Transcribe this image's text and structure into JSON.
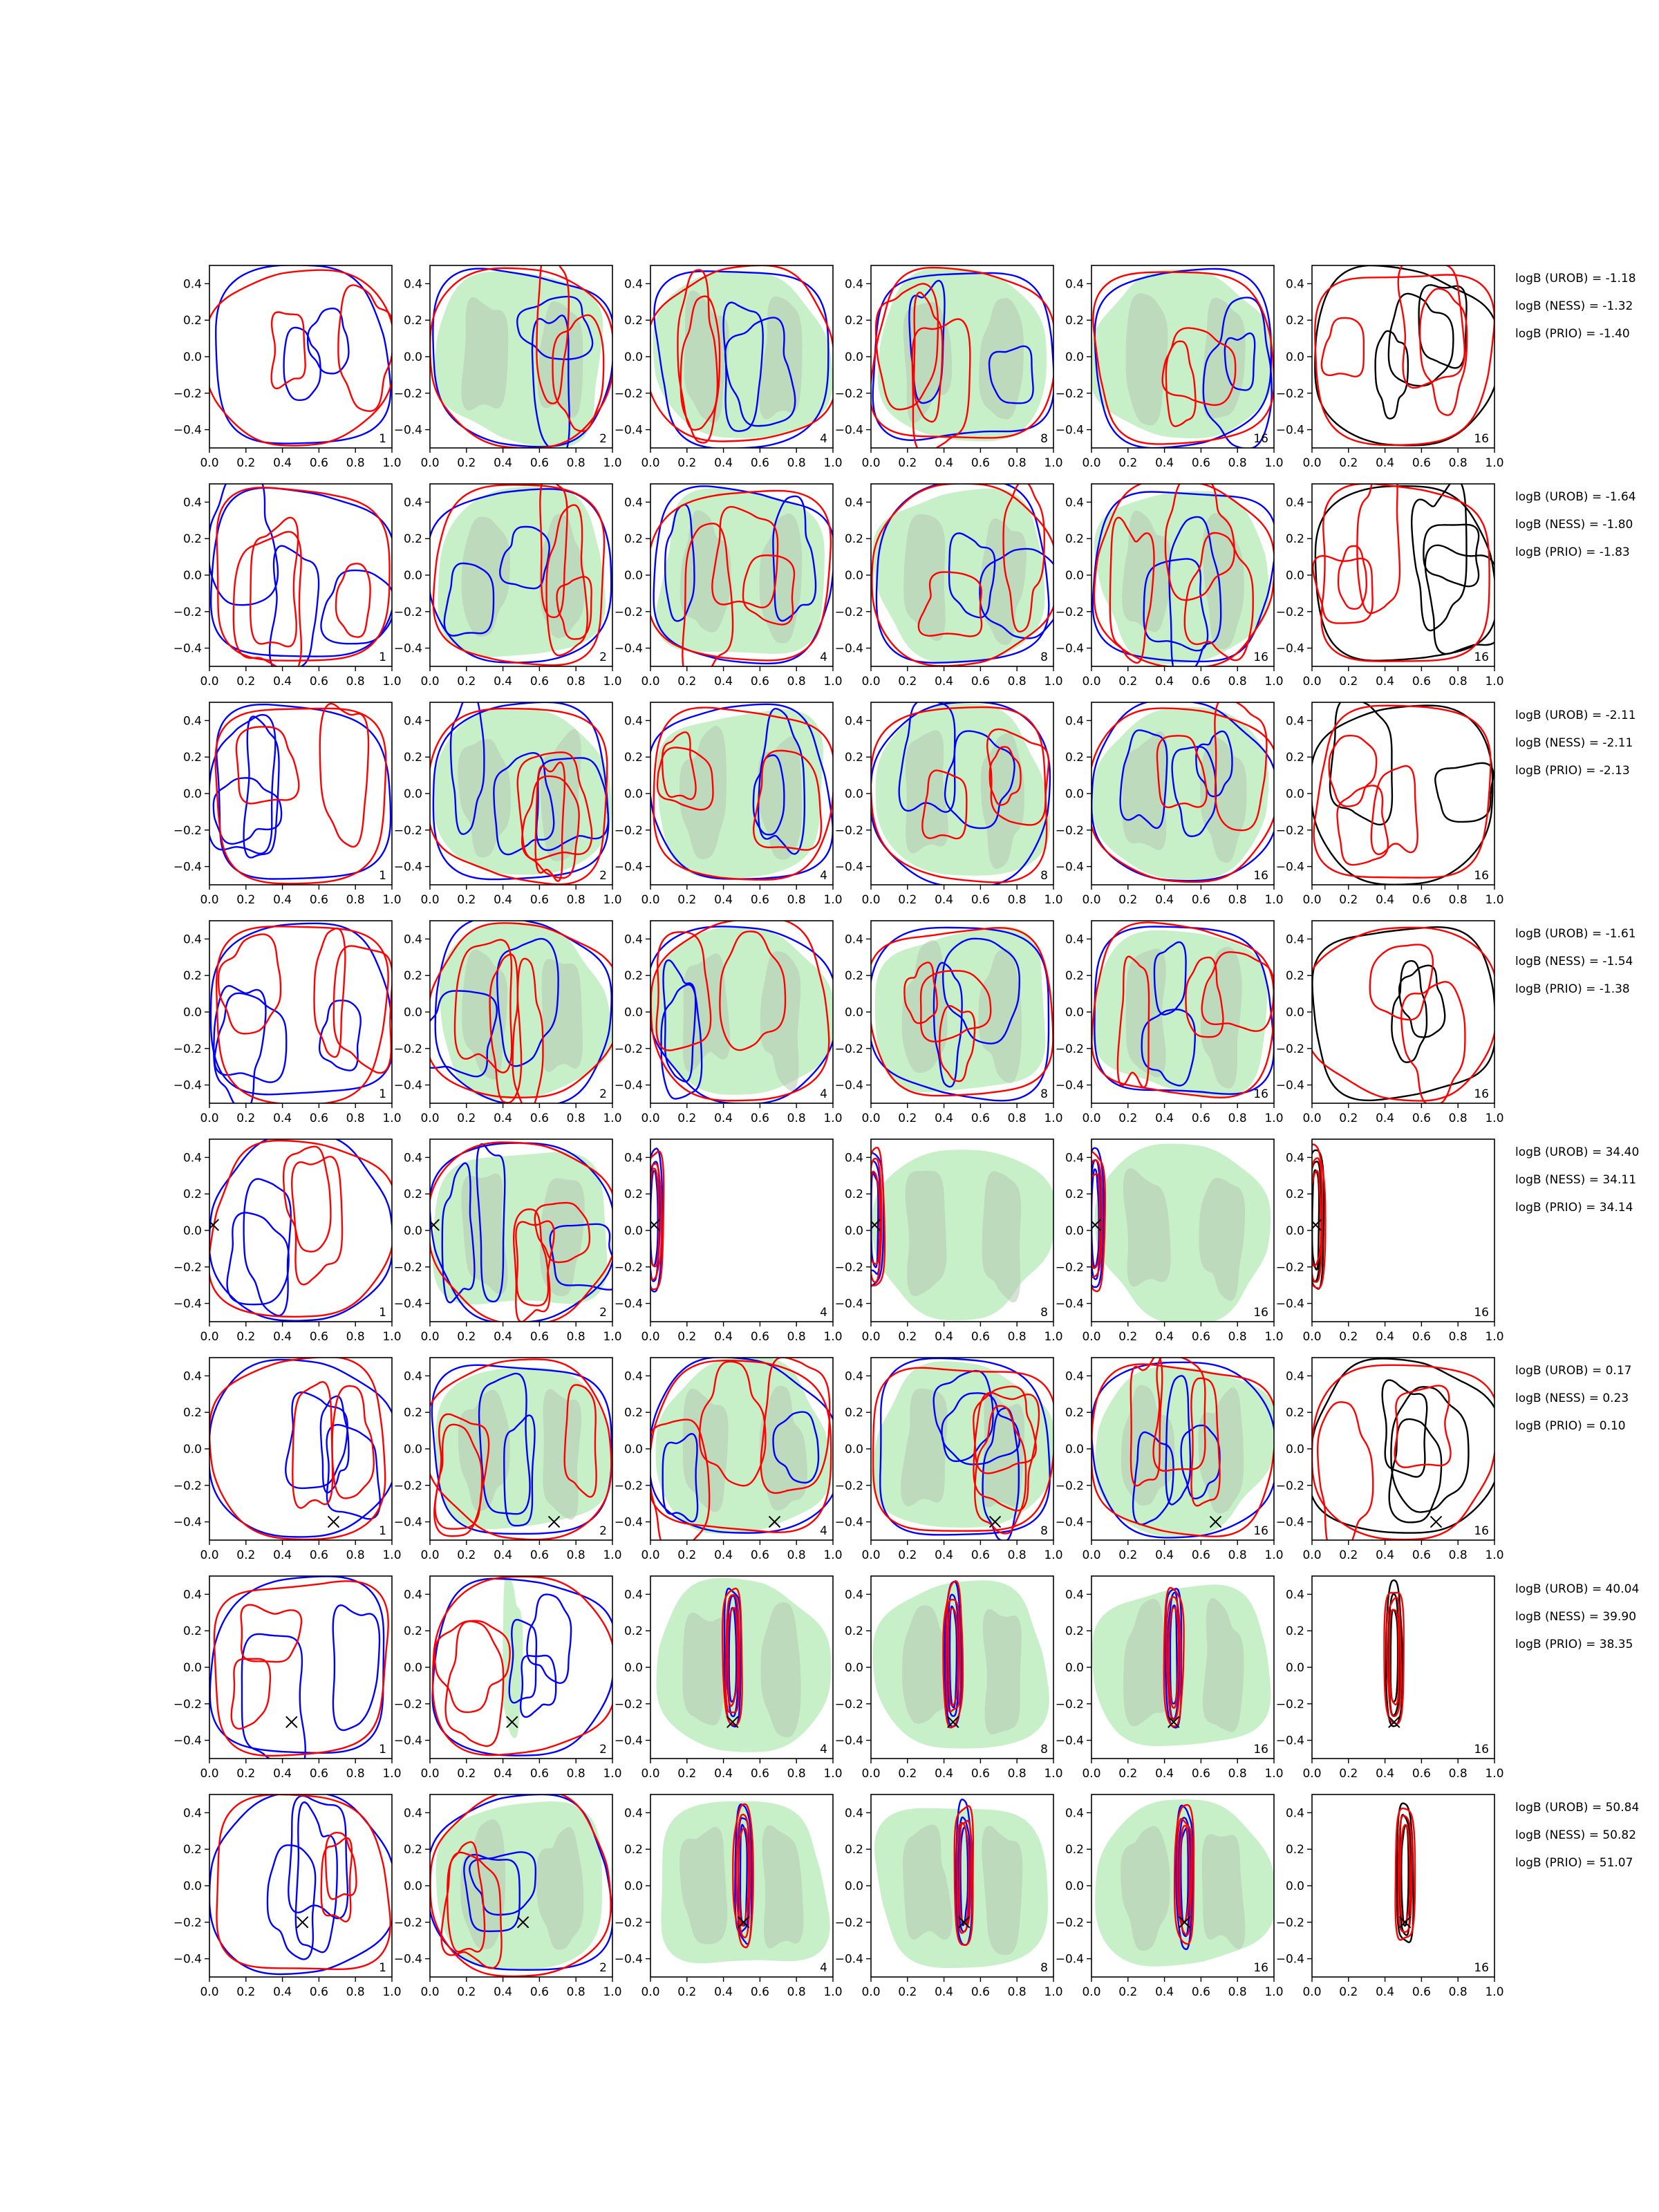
{
  "chart_data": {
    "type": "contour",
    "layout": "grid of 8 rows x 6 panels; each panel shows 2D posterior contours over x in [0,1] and y in [-0.5,0.5]",
    "xlim": [
      0,
      1
    ],
    "ylim": [
      -0.5,
      0.5
    ],
    "x_ticks": [
      "0.0",
      "0.2",
      "0.4",
      "0.6",
      "0.8",
      "1.0"
    ],
    "y_ticks": [
      "0.4",
      "0.2",
      "0.0",
      "−0.2",
      "−0.4"
    ],
    "panel_labels": [
      "1",
      "2",
      "4",
      "8",
      "16",
      "16"
    ],
    "colors": {
      "blue_contour": "#0000ff",
      "red_contour": "#ff0000",
      "black_contour": "#000000",
      "green_fill": "#c8f0c8",
      "gray_fill": "#b4c8b4"
    },
    "rows": [
      {
        "truth_marker": null,
        "annotations": [
          "logB (UROB) = -1.18",
          "logB (NESS) = -1.32",
          "logB (PRIO) = -1.40"
        ]
      },
      {
        "truth_marker": null,
        "annotations": [
          "logB (UROB) = -1.64",
          "logB (NESS) = -1.80",
          "logB (PRIO) = -1.83"
        ]
      },
      {
        "truth_marker": null,
        "annotations": [
          "logB (UROB) = -2.11",
          "logB (NESS) = -2.11",
          "logB (PRIO) = -2.13"
        ]
      },
      {
        "truth_marker": null,
        "annotations": [
          "logB (UROB) = -1.61",
          "logB (NESS) = -1.54",
          "logB (PRIO) = -1.38"
        ]
      },
      {
        "truth_marker": {
          "x": 0.02,
          "y": 0.03
        },
        "annotations": [
          "logB (UROB) = 34.40",
          "logB (NESS) = 34.11",
          "logB (PRIO) = 34.14"
        ]
      },
      {
        "truth_marker": {
          "x": 0.68,
          "y": -0.4
        },
        "annotations": [
          "logB (UROB) = 0.17",
          "logB (NESS) = 0.23",
          "logB (PRIO) = 0.10"
        ]
      },
      {
        "truth_marker": {
          "x": 0.45,
          "y": -0.3
        },
        "annotations": [
          "logB (UROB) = 40.04",
          "logB (NESS) = 39.90",
          "logB (PRIO) = 38.35"
        ]
      },
      {
        "truth_marker": {
          "x": 0.51,
          "y": -0.2
        },
        "annotations": [
          "logB (UROB) = 50.84",
          "logB (NESS) = 50.82",
          "logB (PRIO) = 51.07"
        ]
      }
    ]
  }
}
